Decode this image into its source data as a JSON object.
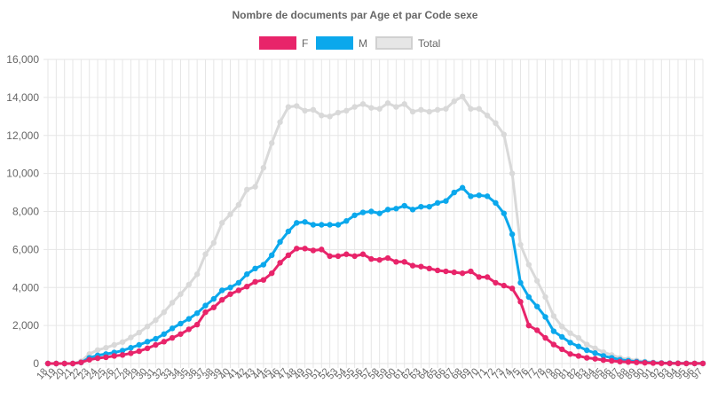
{
  "chart_data": {
    "type": "line",
    "title": "Nombre de documents par Age et par Code sexe",
    "xlabel": "",
    "ylabel": "",
    "ylim": [
      0,
      16000
    ],
    "yticks": [
      0,
      2000,
      4000,
      6000,
      8000,
      10000,
      12000,
      14000,
      16000
    ],
    "ytick_labels": [
      "0",
      "2,000",
      "4,000",
      "6,000",
      "8,000",
      "10,000",
      "12,000",
      "14,000",
      "16,000"
    ],
    "grid": true,
    "legend_position": "top",
    "x": [
      18,
      19,
      20,
      21,
      22,
      23,
      24,
      25,
      26,
      27,
      28,
      29,
      30,
      31,
      32,
      33,
      34,
      35,
      36,
      37,
      38,
      39,
      40,
      41,
      42,
      43,
      44,
      45,
      46,
      47,
      48,
      49,
      50,
      51,
      52,
      53,
      54,
      55,
      56,
      57,
      58,
      59,
      60,
      61,
      62,
      63,
      64,
      65,
      66,
      67,
      68,
      69,
      70,
      71,
      72,
      73,
      74,
      75,
      76,
      77,
      78,
      79,
      80,
      81,
      82,
      83,
      84,
      85,
      86,
      87,
      88,
      89,
      90,
      91,
      92,
      93,
      94,
      95,
      96,
      97
    ],
    "series": [
      {
        "name": "F",
        "color": "#e8246a",
        "values": [
          0,
          0,
          0,
          0,
          60,
          200,
          280,
          330,
          400,
          450,
          540,
          650,
          800,
          980,
          1150,
          1350,
          1550,
          1800,
          2050,
          2700,
          2950,
          3350,
          3650,
          3850,
          4050,
          4300,
          4400,
          4750,
          5300,
          5700,
          6050,
          6050,
          5950,
          6000,
          5650,
          5650,
          5750,
          5650,
          5750,
          5500,
          5450,
          5550,
          5350,
          5350,
          5150,
          5100,
          5000,
          4900,
          4850,
          4800,
          4750,
          4850,
          4550,
          4550,
          4250,
          4100,
          3950,
          3250,
          2000,
          1750,
          1350,
          1000,
          750,
          500,
          400,
          300,
          250,
          180,
          140,
          100,
          80,
          60,
          40,
          25,
          15,
          10,
          8,
          5,
          5,
          5
        ]
      },
      {
        "name": "M",
        "color": "#0ba8ec",
        "values": [
          0,
          0,
          0,
          0,
          60,
          300,
          430,
          500,
          580,
          680,
          830,
          980,
          1150,
          1300,
          1550,
          1850,
          2100,
          2350,
          2650,
          3050,
          3400,
          3850,
          4000,
          4250,
          4700,
          5000,
          5200,
          5700,
          6400,
          6950,
          7400,
          7450,
          7300,
          7300,
          7300,
          7300,
          7500,
          7800,
          7950,
          8000,
          7900,
          8100,
          8150,
          8300,
          8100,
          8250,
          8250,
          8450,
          8550,
          9000,
          9250,
          8800,
          8850,
          8800,
          8450,
          7900,
          6800,
          4250,
          3500,
          3000,
          2450,
          1700,
          1400,
          1100,
          900,
          700,
          550,
          400,
          300,
          200,
          150,
          100,
          70,
          40,
          25,
          15,
          10,
          8,
          5,
          5
        ]
      },
      {
        "name": "Total",
        "color": "#d9d9d9",
        "values": [
          0,
          0,
          0,
          0,
          120,
          500,
          710,
          830,
          980,
          1130,
          1370,
          1630,
          1950,
          2280,
          2700,
          3200,
          3650,
          4150,
          4700,
          5750,
          6350,
          7400,
          7850,
          8350,
          9150,
          9300,
          10300,
          11600,
          12700,
          13500,
          13550,
          13300,
          13350,
          13050,
          13000,
          13200,
          13300,
          13500,
          13650,
          13450,
          13400,
          13700,
          13500,
          13650,
          13250,
          13350,
          13250,
          13350,
          13400,
          13800,
          14050,
          13400,
          13400,
          13050,
          12650,
          12050,
          10000,
          6250,
          5200,
          4350,
          3500,
          2500,
          1950,
          1600,
          1350,
          1000,
          800,
          600,
          450,
          300,
          230,
          160,
          110,
          65,
          40,
          25,
          18,
          13,
          10,
          10
        ]
      }
    ]
  }
}
